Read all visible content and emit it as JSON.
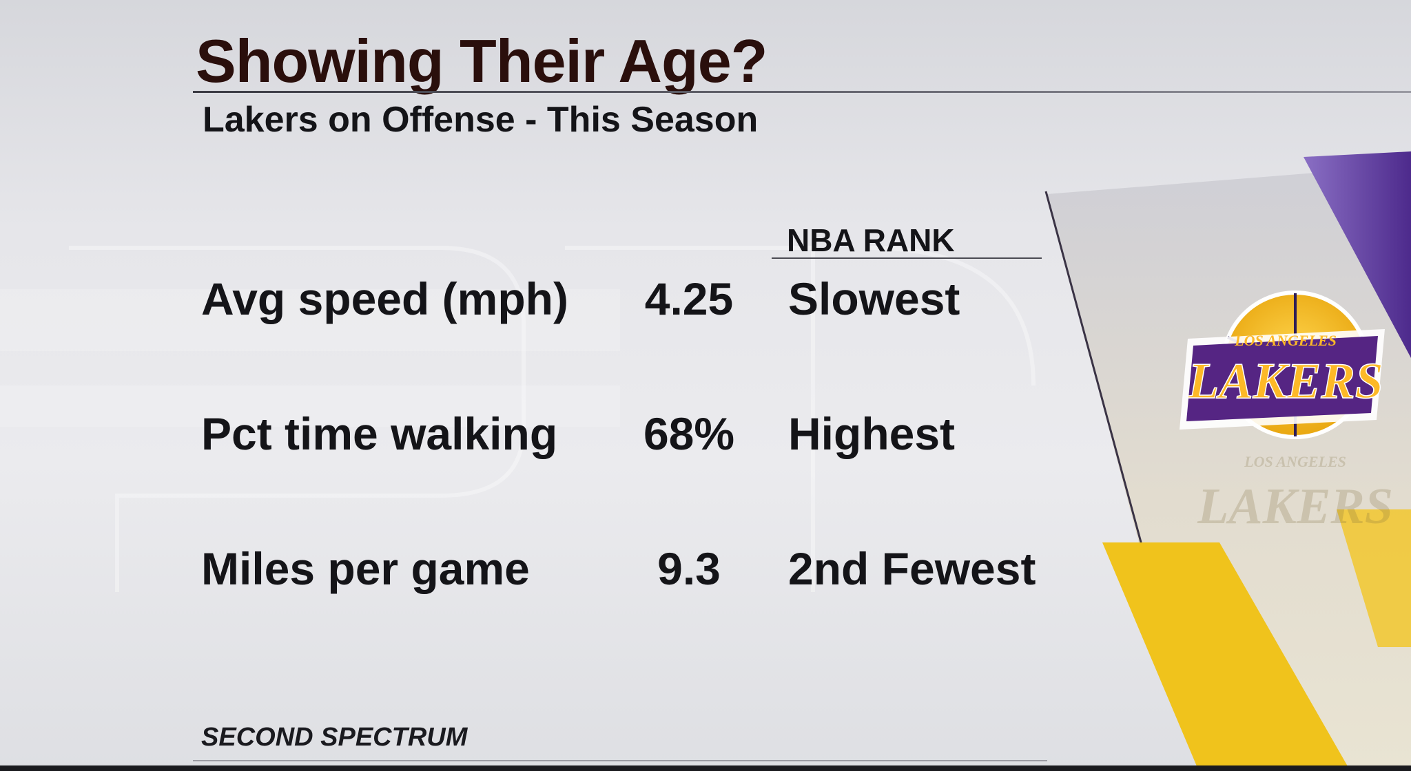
{
  "graphic": {
    "title": "Showing Their Age?",
    "subtitle": "Lakers on Offense - This Season",
    "rank_header": "NBA RANK",
    "source": "SECOND SPECTRUM"
  },
  "stats": [
    {
      "label": "Avg speed (mph)",
      "value": "4.25",
      "rank": "Slowest"
    },
    {
      "label": "Pct time walking",
      "value": "68%",
      "rank": "Highest"
    },
    {
      "label": "Miles per game",
      "value": "9.3",
      "rank": "2nd Fewest"
    }
  ],
  "logo": {
    "top_text": "LOS ANGELES",
    "main_text": "LAKERS",
    "reflection_top_text": "LOS ANGELES",
    "reflection_main_text": "LAKERS"
  },
  "colors": {
    "lakers_purple": "#552583",
    "lakers_gold": "#FDB927",
    "title_text": "#2a0f0c",
    "body_text": "#141418"
  }
}
